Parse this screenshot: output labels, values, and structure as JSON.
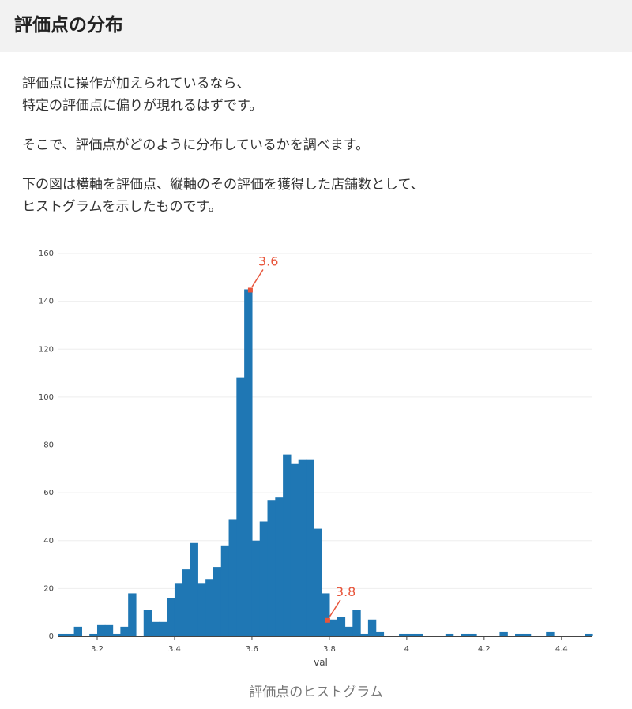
{
  "header": {
    "title": "評価点の分布"
  },
  "paragraphs": [
    {
      "lines": [
        "評価点に操作が加えられているなら、",
        "特定の評価点に偏りが現れるはずです。"
      ]
    },
    {
      "lines": [
        "そこで、評価点がどのように分布しているかを調べます。"
      ]
    },
    {
      "lines": [
        "下の図は横軸を評価点、縦軸のその評価を獲得した店舗数として、",
        "ヒストグラムを示したものです。"
      ]
    }
  ],
  "caption": "評価点のヒストグラム",
  "colors": {
    "bar": "#1f77b4",
    "annotation": "#e8553b",
    "grid": "#eeeeee"
  },
  "chart_data": {
    "type": "bar",
    "title": "",
    "xlabel": "val",
    "ylabel": "",
    "xlim": [
      3.1,
      4.48
    ],
    "ylim": [
      0,
      160
    ],
    "bin_width": 0.02,
    "grid": true,
    "x_ticks": [
      3.2,
      3.4,
      3.6,
      3.8,
      4,
      4.2,
      4.4
    ],
    "y_ticks": [
      0,
      20,
      40,
      60,
      80,
      100,
      120,
      140,
      160
    ],
    "bins": [
      {
        "x": 3.1,
        "y": 1
      },
      {
        "x": 3.12,
        "y": 1
      },
      {
        "x": 3.14,
        "y": 4
      },
      {
        "x": 3.16,
        "y": 0
      },
      {
        "x": 3.18,
        "y": 1
      },
      {
        "x": 3.2,
        "y": 5
      },
      {
        "x": 3.22,
        "y": 5
      },
      {
        "x": 3.24,
        "y": 1
      },
      {
        "x": 3.26,
        "y": 4
      },
      {
        "x": 3.28,
        "y": 18
      },
      {
        "x": 3.3,
        "y": 0
      },
      {
        "x": 3.32,
        "y": 11
      },
      {
        "x": 3.34,
        "y": 6
      },
      {
        "x": 3.36,
        "y": 6
      },
      {
        "x": 3.38,
        "y": 16
      },
      {
        "x": 3.4,
        "y": 22
      },
      {
        "x": 3.42,
        "y": 28
      },
      {
        "x": 3.44,
        "y": 39
      },
      {
        "x": 3.46,
        "y": 22
      },
      {
        "x": 3.48,
        "y": 24
      },
      {
        "x": 3.5,
        "y": 29
      },
      {
        "x": 3.52,
        "y": 38
      },
      {
        "x": 3.54,
        "y": 49
      },
      {
        "x": 3.56,
        "y": 108
      },
      {
        "x": 3.58,
        "y": 145
      },
      {
        "x": 3.6,
        "y": 40
      },
      {
        "x": 3.62,
        "y": 48
      },
      {
        "x": 3.64,
        "y": 57
      },
      {
        "x": 3.66,
        "y": 58
      },
      {
        "x": 3.68,
        "y": 76
      },
      {
        "x": 3.7,
        "y": 72
      },
      {
        "x": 3.72,
        "y": 74
      },
      {
        "x": 3.74,
        "y": 74
      },
      {
        "x": 3.76,
        "y": 45
      },
      {
        "x": 3.78,
        "y": 18
      },
      {
        "x": 3.8,
        "y": 7
      },
      {
        "x": 3.82,
        "y": 8
      },
      {
        "x": 3.84,
        "y": 4
      },
      {
        "x": 3.86,
        "y": 11
      },
      {
        "x": 3.88,
        "y": 1
      },
      {
        "x": 3.9,
        "y": 7
      },
      {
        "x": 3.92,
        "y": 2
      },
      {
        "x": 3.94,
        "y": 0
      },
      {
        "x": 3.96,
        "y": 0
      },
      {
        "x": 3.98,
        "y": 1
      },
      {
        "x": 4.0,
        "y": 1
      },
      {
        "x": 4.02,
        "y": 1
      },
      {
        "x": 4.04,
        "y": 0
      },
      {
        "x": 4.06,
        "y": 0
      },
      {
        "x": 4.08,
        "y": 0
      },
      {
        "x": 4.1,
        "y": 1
      },
      {
        "x": 4.12,
        "y": 0
      },
      {
        "x": 4.14,
        "y": 1
      },
      {
        "x": 4.16,
        "y": 1
      },
      {
        "x": 4.18,
        "y": 0
      },
      {
        "x": 4.2,
        "y": 0
      },
      {
        "x": 4.22,
        "y": 0
      },
      {
        "x": 4.24,
        "y": 2
      },
      {
        "x": 4.26,
        "y": 0
      },
      {
        "x": 4.28,
        "y": 1
      },
      {
        "x": 4.3,
        "y": 1
      },
      {
        "x": 4.32,
        "y": 0
      },
      {
        "x": 4.34,
        "y": 0
      },
      {
        "x": 4.36,
        "y": 2
      },
      {
        "x": 4.38,
        "y": 0
      },
      {
        "x": 4.4,
        "y": 0
      },
      {
        "x": 4.42,
        "y": 0
      },
      {
        "x": 4.44,
        "y": 0
      },
      {
        "x": 4.46,
        "y": 1
      }
    ],
    "annotations": [
      {
        "text": "3.6",
        "x": 3.6,
        "y": 145
      },
      {
        "text": "3.8",
        "x": 3.8,
        "y": 7
      }
    ]
  }
}
